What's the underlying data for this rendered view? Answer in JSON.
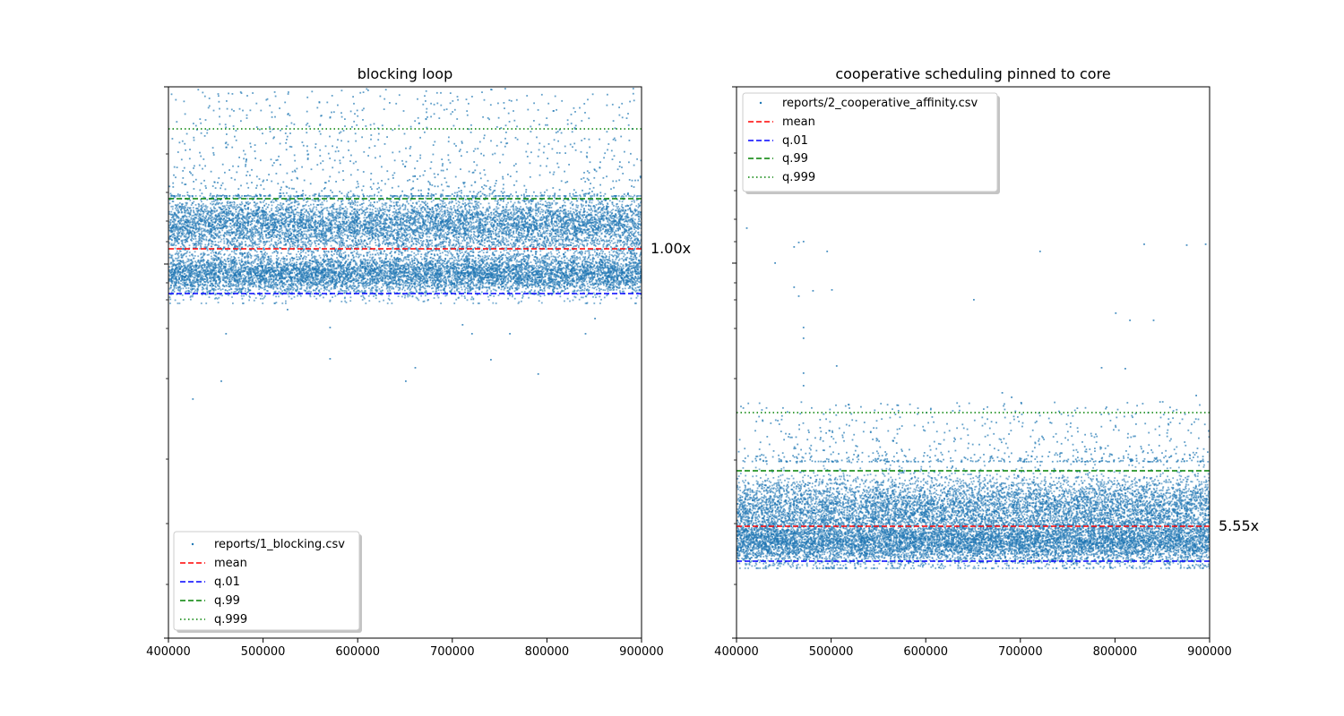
{
  "chart_data": [
    {
      "type": "scatter",
      "title": "blocking loop",
      "xlabel": "",
      "ylabel": "",
      "xlim": [
        400000,
        900000
      ],
      "x_ticks": [
        400000,
        500000,
        600000,
        700000,
        800000,
        900000
      ],
      "x_tick_labels": [
        "400000",
        "500000",
        "600000",
        "700000",
        "800000",
        "900000"
      ],
      "y_scale": "log",
      "y_tick_labels_shown": false,
      "grid": false,
      "ratio_label": "1.00x",
      "legend_position": "lower-left",
      "series": [
        {
          "name": "reports/1_blocking.csv",
          "kind": "scatter",
          "color": "#1f77b4",
          "n_points_approx": 60000,
          "band": "dense band between q.01 and q.99, sparse points up to top of axis"
        }
      ],
      "reference_lines": [
        {
          "name": "mean",
          "style": "dashed",
          "color": "#ff0000"
        },
        {
          "name": "q.01",
          "style": "dashed",
          "color": "#0000ff"
        },
        {
          "name": "q.99",
          "style": "dashed",
          "color": "#008000"
        },
        {
          "name": "q.999",
          "style": "dotted",
          "color": "#008000"
        }
      ]
    },
    {
      "type": "scatter",
      "title": "cooperative scheduling pinned to core",
      "xlabel": "",
      "ylabel": "",
      "xlim": [
        400000,
        900000
      ],
      "x_ticks": [
        400000,
        500000,
        600000,
        700000,
        800000,
        900000
      ],
      "x_tick_labels": [
        "400000",
        "500000",
        "600000",
        "700000",
        "800000",
        "900000"
      ],
      "y_scale": "log",
      "y_tick_labels_shown": false,
      "grid": false,
      "ratio_label": "5.55x",
      "legend_position": "upper-left",
      "series": [
        {
          "name": "reports/2_cooperative_affinity.csv",
          "kind": "scatter",
          "color": "#1f77b4",
          "n_points_approx": 60000,
          "band": "dense band between q.01 and q.99, rare outliers far above q.999"
        }
      ],
      "reference_lines": [
        {
          "name": "mean",
          "style": "dashed",
          "color": "#ff0000"
        },
        {
          "name": "q.01",
          "style": "dashed",
          "color": "#0000ff"
        },
        {
          "name": "q.99",
          "style": "dashed",
          "color": "#008000"
        },
        {
          "name": "q.999",
          "style": "dotted",
          "color": "#008000"
        }
      ]
    }
  ]
}
